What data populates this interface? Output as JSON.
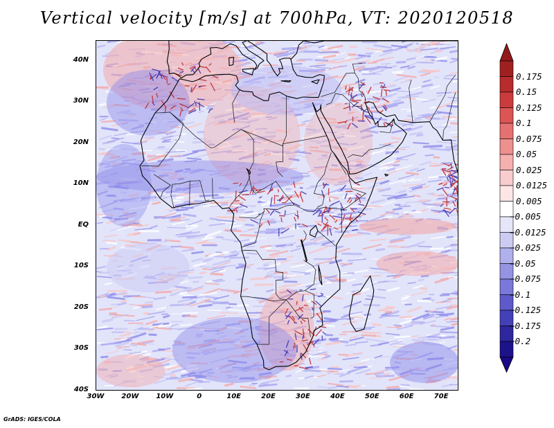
{
  "title": "Vertical velocity [m/s] at 700hPa, VT: 2020120518",
  "map": {
    "lat_labels": [
      "40N",
      "30N",
      "20N",
      "10N",
      "EQ",
      "10S",
      "20S",
      "30S",
      "40S"
    ],
    "lon_labels": [
      "30W",
      "20W",
      "10W",
      "0",
      "10E",
      "20E",
      "30E",
      "40E",
      "50E",
      "60E",
      "70E"
    ],
    "lat_range": [
      -40,
      45
    ],
    "lon_range": [
      -30,
      75
    ],
    "field_colors": {
      "background": "#e2e4fa",
      "sinking": "#8d8bea",
      "rising": "#f2a9a9",
      "strong_rising": "#c02a2a",
      "strong_sinking": "#3f33b0"
    }
  },
  "colorbar": {
    "labels": [
      "0.175",
      "0.15",
      "0.125",
      "0.1",
      "0.075",
      "0.05",
      "0.025",
      "0.0125",
      "0.005",
      "−0.005",
      "−0.0125",
      "−0.025",
      "−0.05",
      "−0.075",
      "−0.1",
      "−0.125",
      "−0.175",
      "−0.2"
    ],
    "colors": [
      "#a02020",
      "#b82c2c",
      "#cc3b3b",
      "#dc5454",
      "#e67171",
      "#ee9090",
      "#f5b0b0",
      "#f9cdcd",
      "#fde6e6",
      "#ffffff",
      "#e6e6fa",
      "#ccccf3",
      "#b0b0ec",
      "#9494e3",
      "#7a78d9",
      "#5e5acb",
      "#4440b8",
      "#2d269c",
      "#1c128a"
    ],
    "top_arrow_color": "#921a1a",
    "bottom_arrow_color": "#1a0a86"
  },
  "footer": "GrADS: IGES/COLA"
}
